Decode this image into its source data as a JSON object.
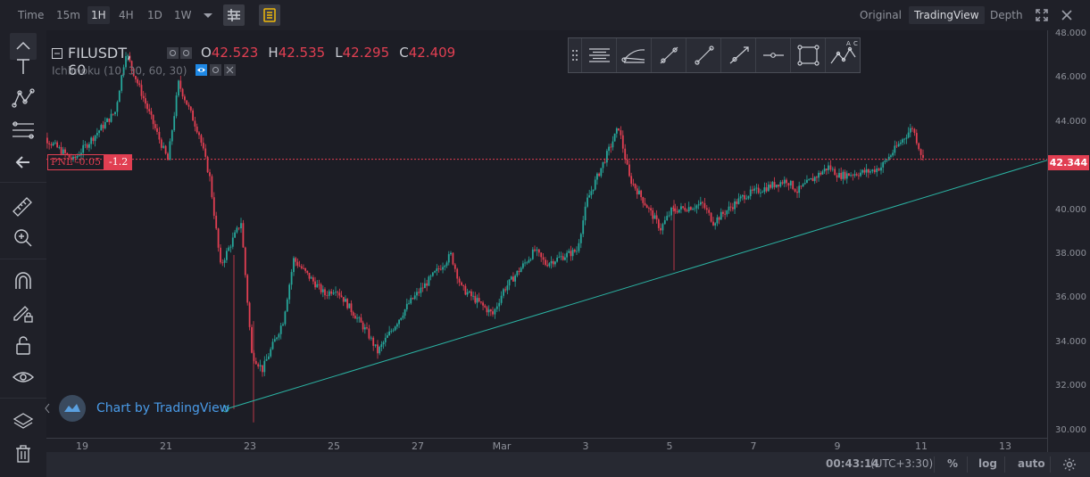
{
  "topbar": {
    "left_items": [
      {
        "label": "Time",
        "active": false
      },
      {
        "label": "15m",
        "active": false
      },
      {
        "label": "1H",
        "active": true
      },
      {
        "label": "4H",
        "active": false
      },
      {
        "label": "1D",
        "active": false
      },
      {
        "label": "1W",
        "active": false
      }
    ],
    "right_items": [
      {
        "label": "Original",
        "active": false
      },
      {
        "label": "TradingView",
        "active": true
      },
      {
        "label": "Depth",
        "active": false
      }
    ],
    "icons": [
      "chevron-down-icon",
      "indicators-icon",
      "notes-icon",
      "fullscreen-icon",
      "close-icon"
    ]
  },
  "legend": {
    "symbol": "FILUSDT, 60",
    "open_label": "O",
    "open": "42.523",
    "high_label": "H",
    "high": "42.535",
    "low_label": "L",
    "low": "42.295",
    "close_label": "C",
    "close": "42.409",
    "indicator": "Ichimoku (10, 30, 60, 30)"
  },
  "pnl": {
    "label": "PNL -0.05",
    "value": "-1.2"
  },
  "current_price": "42.344",
  "watermark": "Chart by TradingView",
  "bottombar": {
    "clock": "00:43:14",
    "timezone": "(UTC+3:30)",
    "percent": "%",
    "log": "log",
    "auto": "auto"
  },
  "colors": {
    "up": "#26a69a",
    "down": "#e13f52",
    "trendline": "#2bb3a3",
    "background": "#1c1d25"
  },
  "sidebar_icons": [
    "crosshair-icon",
    "text-icon",
    "pattern-icon",
    "fib-icon",
    "back-arrow-icon",
    "ruler-icon",
    "zoom-icon",
    "magnet-icon",
    "pencil-lock-icon",
    "lock-icon",
    "eye-icon",
    "layers-icon",
    "trash-icon"
  ],
  "toolbox_icons": [
    "drag-handle-icon",
    "parallel-lines-icon",
    "pitchfork-icon",
    "segment-icon",
    "trendline-icon",
    "ray-icon",
    "horizontal-ray-icon",
    "rectangle-icon",
    "xabcd-icon"
  ],
  "chart_data": {
    "type": "candlestick",
    "title": "FILUSDT, 60",
    "x_ticks": [
      "19",
      "21",
      "23",
      "25",
      "27",
      "Mar",
      "3",
      "5",
      "7",
      "9",
      "11",
      "13"
    ],
    "y_ticks": [
      "48.000",
      "46.000",
      "44.000",
      "42.000",
      "40.000",
      "38.000",
      "36.000",
      "34.000",
      "32.000",
      "30.000"
    ],
    "ylim": [
      29.7,
      48.2
    ],
    "grid": false,
    "price_line": 42.344,
    "trendline": {
      "from": {
        "x": "Feb 22",
        "y": 31.0
      },
      "to": {
        "x": "Mar 13",
        "y": 42.3
      }
    },
    "path_keypoints": [
      {
        "x": "Feb 18",
        "y": 43.8
      },
      {
        "x": "Feb 19",
        "y": 42.3
      },
      {
        "x": "Feb 20",
        "y": 44.5
      },
      {
        "x": "Feb 20",
        "y": 47.2
      },
      {
        "x": "Feb 21",
        "y": 43.5
      },
      {
        "x": "Feb 21",
        "y": 42.3
      },
      {
        "x": "Feb 21",
        "y": 45.8
      },
      {
        "x": "Feb 22",
        "y": 43.5
      },
      {
        "x": "Feb 22",
        "y": 41.5
      },
      {
        "x": "Feb 22",
        "y": 37.5
      },
      {
        "x": "Feb 23",
        "y": 39.5
      },
      {
        "x": "Feb 23",
        "y": 33.5
      },
      {
        "x": "Feb 23",
        "y": 32.8
      },
      {
        "x": "Feb 24",
        "y": 35.0
      },
      {
        "x": "Feb 24",
        "y": 37.8
      },
      {
        "x": "Feb 25",
        "y": 36.2
      },
      {
        "x": "Feb 25",
        "y": 36.5
      },
      {
        "x": "Feb 26",
        "y": 34.5
      },
      {
        "x": "Feb 26",
        "y": 33.6
      },
      {
        "x": "Feb 27",
        "y": 35.8
      },
      {
        "x": "Feb 28",
        "y": 38.0
      },
      {
        "x": "Feb 28",
        "y": 36.5
      },
      {
        "x": "Mar 1",
        "y": 35.3
      },
      {
        "x": "Mar 1",
        "y": 36.4
      },
      {
        "x": "Mar 2",
        "y": 38.2
      },
      {
        "x": "Mar 2",
        "y": 37.6
      },
      {
        "x": "Mar 3",
        "y": 38.2
      },
      {
        "x": "Mar 3",
        "y": 40.5
      },
      {
        "x": "Mar 4",
        "y": 43.8
      },
      {
        "x": "Mar 4",
        "y": 41.5
      },
      {
        "x": "Mar 5",
        "y": 39.2
      },
      {
        "x": "Mar 5",
        "y": 40.0
      },
      {
        "x": "Mar 6",
        "y": 40.3
      },
      {
        "x": "Mar 6",
        "y": 39.5
      },
      {
        "x": "Mar 7",
        "y": 40.7
      },
      {
        "x": "Mar 8",
        "y": 41.4
      },
      {
        "x": "Mar 8",
        "y": 40.9
      },
      {
        "x": "Mar 9",
        "y": 42.0
      },
      {
        "x": "Mar 9",
        "y": 41.6
      },
      {
        "x": "Mar 10",
        "y": 41.8
      },
      {
        "x": "Mar 10",
        "y": 42.0
      },
      {
        "x": "Mar 11",
        "y": 43.8
      },
      {
        "x": "Mar 11",
        "y": 42.34
      }
    ]
  }
}
